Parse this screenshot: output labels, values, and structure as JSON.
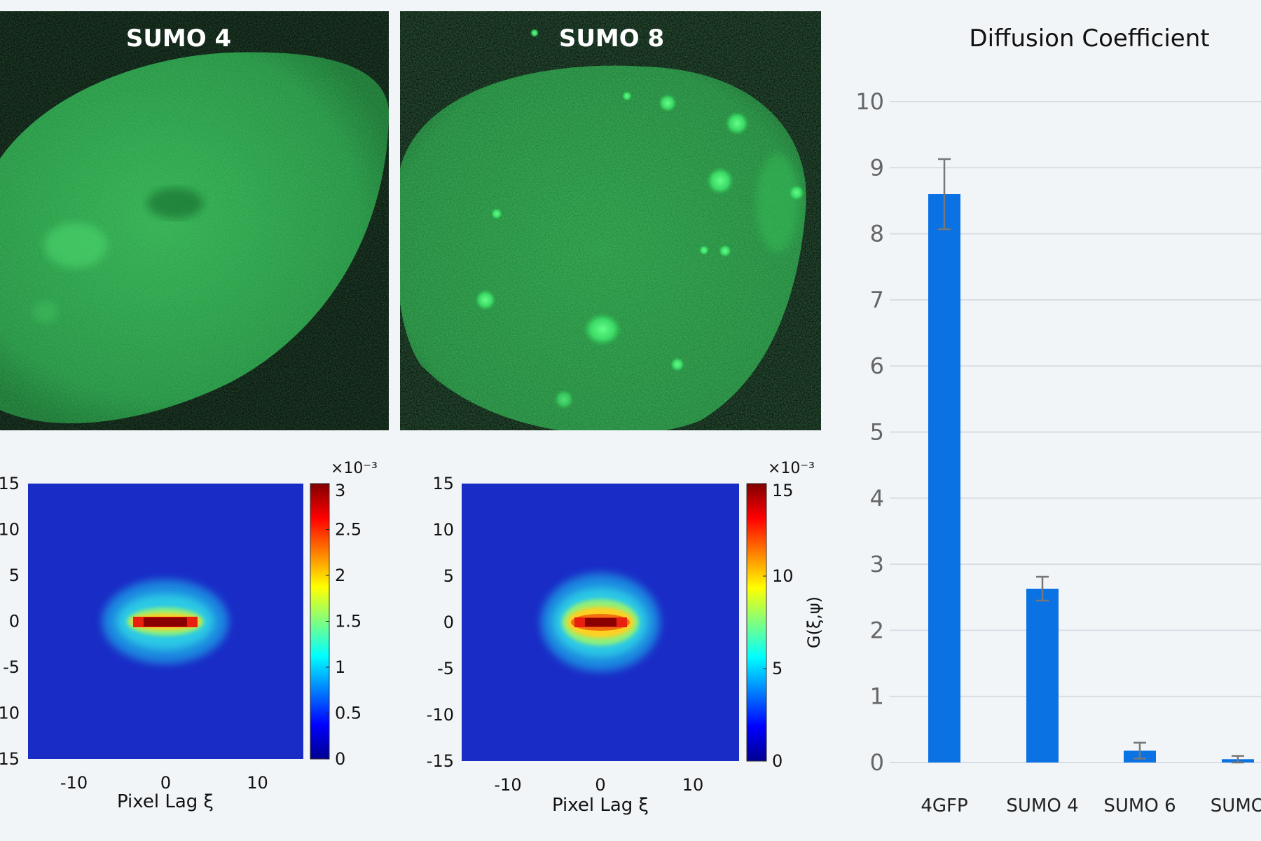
{
  "micrographs": [
    {
      "title": "SUMO 4"
    },
    {
      "title": "SUMO 8"
    }
  ],
  "chart_data": [
    {
      "type": "heatmap",
      "xlabel": "Pixel Lag ξ",
      "ylabel": "",
      "x_ticks": [
        "-10",
        "0",
        "10"
      ],
      "y_ticks": [
        "15",
        "10",
        "5",
        "0",
        "-5",
        "-10",
        "-15"
      ],
      "xlim": [
        -15,
        15
      ],
      "ylim": [
        -15,
        15
      ],
      "colorbar": {
        "multiplier": "×10⁻³",
        "ticks": [
          "3",
          "2.5",
          "2",
          "1.5",
          "1",
          "0.5",
          "0"
        ],
        "range": [
          0,
          3
        ],
        "label": ""
      },
      "peak": {
        "center": [
          0,
          0
        ],
        "peak_value": 3
      }
    },
    {
      "type": "heatmap",
      "xlabel": "Pixel Lag ξ",
      "ylabel": "",
      "x_ticks": [
        "-10",
        "0",
        "10"
      ],
      "y_ticks": [
        "15",
        "10",
        "5",
        "0",
        "-5",
        "-10",
        "-15"
      ],
      "xlim": [
        -15,
        15
      ],
      "ylim": [
        -15,
        15
      ],
      "colorbar": {
        "multiplier": "×10⁻³",
        "ticks": [
          "15",
          "10",
          "5",
          "0"
        ],
        "range": [
          0,
          15
        ],
        "label": "G(ξ,ψ)"
      },
      "peak": {
        "center": [
          0,
          0
        ],
        "peak_value": 15
      }
    },
    {
      "type": "bar",
      "title": "Diffusion Coefficient",
      "categories": [
        "4GFP",
        "SUMO 4",
        "SUMO 6",
        "SUMO"
      ],
      "values": [
        8.6,
        2.63,
        0.18,
        0.05
      ],
      "errors": [
        0.53,
        0.18,
        0.12,
        0.05
      ],
      "ylim": [
        0,
        10
      ],
      "y_ticks": [
        0,
        1,
        2,
        3,
        4,
        5,
        6,
        7,
        8,
        9,
        10
      ],
      "grid": true,
      "bar_color": "#0a72e3",
      "error_color": "#777777"
    }
  ],
  "colors": {
    "background": "#f2f5f8",
    "micrograph_bg": "#020603",
    "micrograph_green": "#22a844",
    "heatmap_bg": "#1a2cc6"
  }
}
